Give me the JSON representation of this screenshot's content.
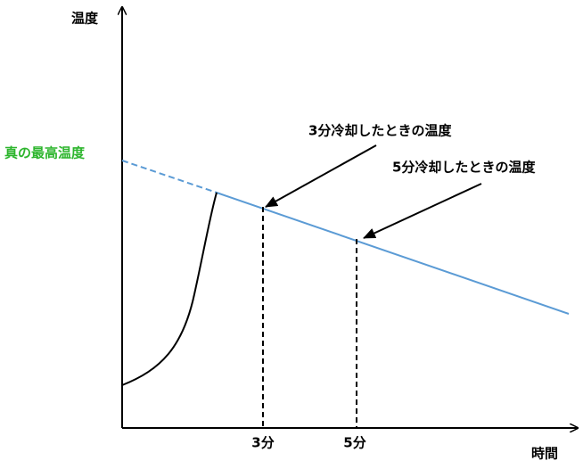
{
  "axes": {
    "y_label": "温度",
    "x_label": "時間"
  },
  "annotations": {
    "true_max": "真の最高温度",
    "cool_3": "3分冷却したときの温度",
    "cool_5": "5分冷却したときの温度"
  },
  "x_marks": [
    "3分",
    "5分"
  ]
}
